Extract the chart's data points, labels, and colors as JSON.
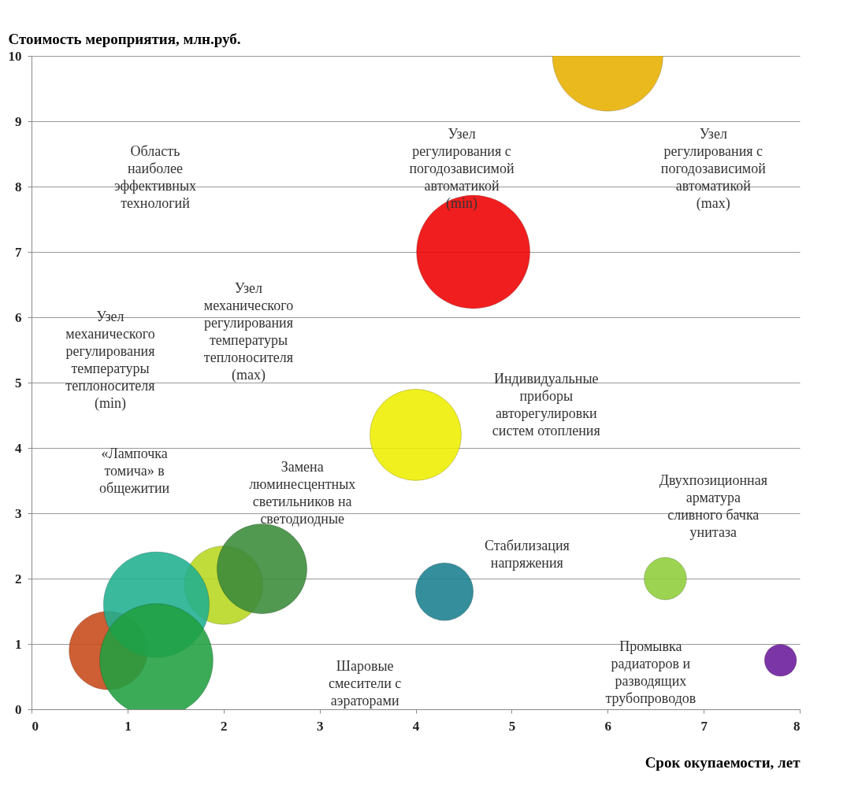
{
  "chart_data": {
    "type": "bubble",
    "xlabel": "Срок окупаемости, лет",
    "ylabel": "Стоимость мероприятия, млн.руб.",
    "x": [
      6.0,
      4.6,
      4.0,
      4.3,
      6.6,
      7.8,
      2.0,
      2.4,
      0.8,
      1.3,
      1.3
    ],
    "values": [
      10.0,
      7.0,
      4.2,
      1.8,
      2.0,
      0.75,
      1.9,
      2.15,
      0.9,
      1.6,
      0.75
    ],
    "sizes": [
      0.95,
      1.0,
      0.65,
      0.26,
      0.14,
      0.08,
      0.48,
      0.63,
      0.48,
      0.87,
      1.0
    ],
    "colors": [
      "#e8b000",
      "#ee0000",
      "#eeee00",
      "#1a7f8f",
      "#8fce3a",
      "#6a1a9a",
      "#b8d820",
      "#3a8a3a",
      "#c84a1a",
      "#20b090",
      "#20a040"
    ],
    "xlim": [
      0,
      8
    ],
    "xticks": [
      0,
      1,
      2,
      3,
      4,
      5,
      6,
      7,
      8
    ],
    "ylim": [
      0,
      10
    ],
    "yticks": [
      0,
      1,
      2,
      3,
      4,
      5,
      6,
      7,
      8,
      9,
      10
    ],
    "grid": "y",
    "annotations": [
      "Узел\nрегулирования  с\nпогодозависимой\nавтоматикой\n(min)",
      "Узел\nрегулирования  с\nпогодозависимой\nавтоматикой\n(max)",
      "Индивидуальные\nприборы\nавторегулировки\nсистем  отопления",
      "Двухпозиционная\nарматура\nсливного  бачка\nунитаза",
      "Стабилизация\nнапряжения",
      "Промывка\nрадиаторов  и\nразводящих\nтрубопроводов",
      "Шаровые\nсмесители  с\nаэраторами",
      "Замена\nлюминесцентных\nсветильников  на\nсветодиодные",
      "«Лампочка\nтомича» в\nобщежитии",
      "Узел\nмеханического\nрегулирования\nтемпературы\nтеплоносителя\n(min)",
      "Узел\nмеханического\nрегулирования\nтемпературы\nтеплоносителя\n(max)",
      "Область\nнаиболее\nэффективных\nтехнологий"
    ]
  }
}
